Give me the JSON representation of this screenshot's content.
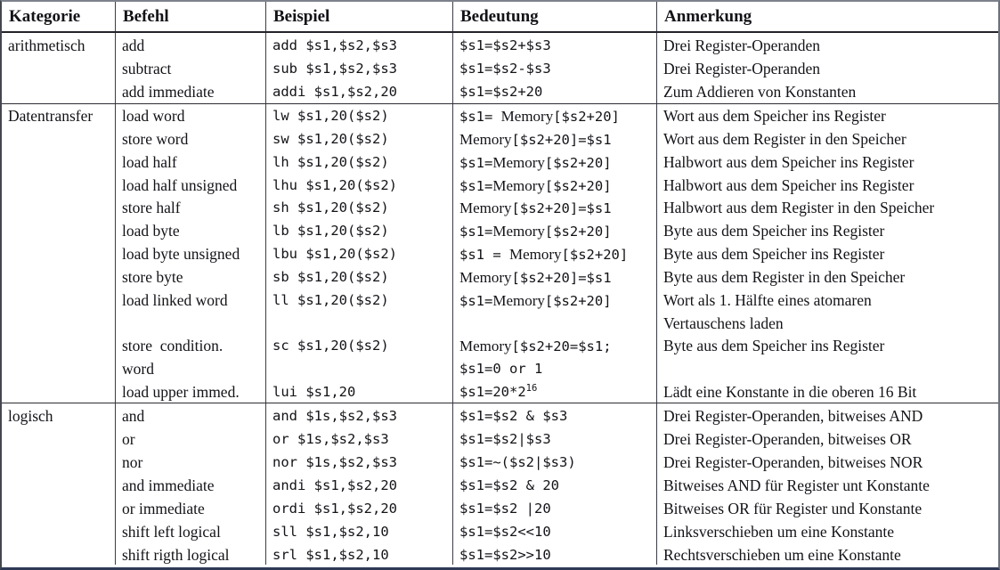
{
  "header": {
    "columns": [
      "Kategorie",
      "Befehl",
      "Beispiel",
      "Bedeutung",
      "Anmerkung"
    ]
  },
  "sections": [
    {
      "kategorie": "arithmetisch",
      "rows": [
        {
          "befehl": "add",
          "beispiel": "add $s1,$s2,$s3",
          "bedeutung": "$s1=$s2+$s3",
          "anmerkung": "Drei Register-Operanden"
        },
        {
          "befehl": "subtract",
          "beispiel": "sub $s1,$s2,$s3",
          "bedeutung": "$s1=$s2-$s3",
          "anmerkung": "Drei Register-Operanden"
        },
        {
          "befehl": "add immediate",
          "beispiel": "addi $s1,$s2,20",
          "bedeutung": "$s1=$s2+20",
          "anmerkung": "Zum Addieren von Konstanten"
        }
      ]
    },
    {
      "kategorie": "Datentransfer",
      "rows": [
        {
          "befehl": "load word",
          "beispiel": "lw $s1,20($s2)",
          "bedeutung": "$s1= Memory[$s2+20]",
          "anmerkung": "Wort aus dem Speicher ins Register"
        },
        {
          "befehl": "store word",
          "beispiel": "sw $s1,20($s2)",
          "bedeutung": "Memory[$s2+20]=$s1",
          "anmerkung": "Wort aus dem Register in den Speicher"
        },
        {
          "befehl": "load half",
          "beispiel": "lh $s1,20($s2)",
          "bedeutung": "$s1=Memory[$s2+20]",
          "anmerkung": "Halbwort aus dem Speicher ins Register"
        },
        {
          "befehl": "load half unsigned",
          "beispiel": "lhu $s1,20($s2)",
          "bedeutung": "$s1=Memory[$s2+20]",
          "anmerkung": "Halbwort aus dem Speicher ins Register"
        },
        {
          "befehl": "store half",
          "beispiel": "sh $s1,20($s2)",
          "bedeutung": "Memory[$s2+20]=$s1",
          "anmerkung": "Halbwort aus dem Register in den Speicher"
        },
        {
          "befehl": "load byte",
          "beispiel": "lb $s1,20($s2)",
          "bedeutung": "$s1=Memory[$s2+20]",
          "anmerkung": "Byte aus dem Speicher ins Register"
        },
        {
          "befehl": "load byte unsigned",
          "beispiel": "lbu $s1,20($s2)",
          "bedeutung": "$s1 = Memory[$s2+20]",
          "anmerkung": "Byte aus dem Speicher ins Register"
        },
        {
          "befehl": "store byte",
          "beispiel": "sb $s1,20($s2)",
          "bedeutung": "Memory[$s2+20]=$s1",
          "anmerkung": "Byte aus dem Register in den Speicher"
        },
        {
          "befehl": "load linked word",
          "beispiel": "ll $s1,20($s2)",
          "bedeutung": "$s1=Memory[$s2+20]",
          "anmerkung": "Wort als 1. Hälfte eines atomaren"
        },
        {
          "befehl": "",
          "beispiel": "",
          "bedeutung": "",
          "anmerkung": "Vertauschens laden"
        },
        {
          "befehl": "store  condition.",
          "beispiel": "sc $s1,20($s2)",
          "bedeutung": "Memory[$s2+20=$s1;",
          "anmerkung": "Byte aus dem Speicher ins Register"
        },
        {
          "befehl": "word",
          "beispiel": "",
          "bedeutung": "$s1=0 or 1",
          "anmerkung": ""
        },
        {
          "befehl": "load upper immed.",
          "beispiel": "lui $s1,20",
          "bedeutung": "$s1=20*2^16",
          "anmerkung": "Lädt eine Konstante in die oberen 16 Bit"
        }
      ]
    },
    {
      "kategorie": "logisch",
      "rows": [
        {
          "befehl": "and",
          "beispiel": "and $1s,$s2,$s3",
          "bedeutung": "$s1=$s2 & $s3",
          "anmerkung": "Drei Register-Operanden, bitweises AND"
        },
        {
          "befehl": "or",
          "beispiel": "or $1s,$s2,$s3",
          "bedeutung": "$s1=$s2|$s3",
          "anmerkung": "Drei Register-Operanden, bitweises OR"
        },
        {
          "befehl": "nor",
          "beispiel": "nor $1s,$s2,$s3",
          "bedeutung": "$s1=~($s2|$s3)",
          "anmerkung": "Drei Register-Operanden, bitweises NOR"
        },
        {
          "befehl": "and immediate",
          "beispiel": "andi $s1,$s2,20",
          "bedeutung": "$s1=$s2 & 20",
          "anmerkung": "Bitweises AND für Register unt Konstante"
        },
        {
          "befehl": "or immediate",
          "beispiel": "ordi $s1,$s2,20",
          "bedeutung": "$s1=$s2 |20",
          "anmerkung": "Bitweises OR für Register und Konstante"
        },
        {
          "befehl": "shift left logical",
          "beispiel": "sll $s1,$s2,10",
          "bedeutung": "$s1=$s2<<10",
          "anmerkung": "Linksverschieben um eine Konstante"
        },
        {
          "befehl": "shift rigth logical",
          "beispiel": "srl $s1,$s2,10",
          "bedeutung": "$s1=$s2>>10",
          "anmerkung": "Rechtsverschieben um eine Konstante"
        }
      ]
    }
  ],
  "colors": {
    "text": "#131318",
    "grid_line": "#3c3d46",
    "bottom_rule": "#2e3a55",
    "background": "#ffffff"
  }
}
